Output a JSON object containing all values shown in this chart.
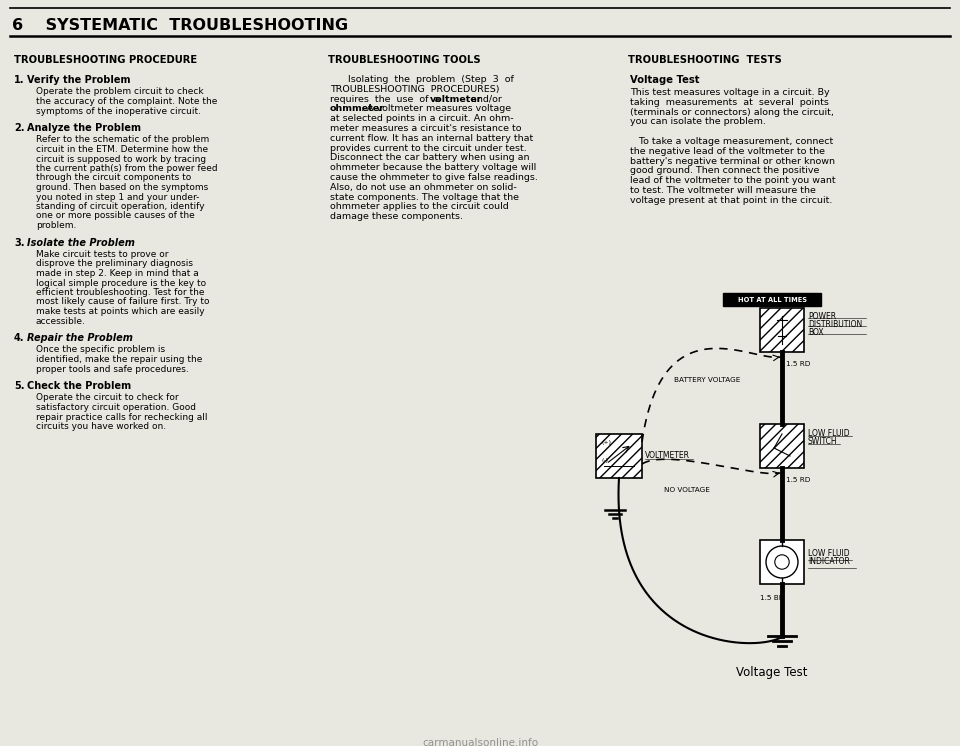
{
  "title": "6    SYSTEMATIC  TROUBLESHOOTING",
  "bg_color": "#e8e8e0",
  "col1_header": "TROUBLESHOOTING PROCEDURE",
  "col2_header": "TROUBLESHOOTING TOOLS",
  "col3_header": "TROUBLESHOOTING  TESTS",
  "col1_items": [
    {
      "num": "1.",
      "bold": "Verify the Problem",
      "italic": false,
      "text": "Operate the problem circuit to check\nthe accuracy of the complaint. Note the\nsymptoms of the inoperative circuit."
    },
    {
      "num": "2.",
      "bold": "Analyze the Problem",
      "italic": false,
      "text": "Refer to the schematic of the problem\ncircuit in the ETM. Determine how the\ncircuit is supposed to work by tracing\nthe current path(s) from the power feed\nthrough the circuit components to\nground. Then based on the symptoms\nyou noted in step 1 and your under-\nstanding of circuit operation, identify\none or more possible causes of the\nproblem."
    },
    {
      "num": "3.",
      "bold": "Isolate the Problem",
      "italic": true,
      "text": "Make circuit tests to prove or\ndisprove the preliminary diagnosis\nmade in step 2. Keep in mind that a\nlogical simple procedure is the key to\nefficient troubleshooting. Test for the\nmost likely cause of failure first. Try to\nmake tests at points which are easily\naccessible."
    },
    {
      "num": "4.",
      "bold": "Repair the Problem",
      "italic": true,
      "text": "Once the specific problem is\nidentified, make the repair using the\nproper tools and safe procedures."
    },
    {
      "num": "5.",
      "bold": "Check the Problem",
      "italic": false,
      "text": "Operate the circuit to check for\nsatisfactory circuit operation. Good\nrepair practice calls for rechecking all\ncircuits you have worked on."
    }
  ],
  "col2_lines": [
    {
      "text": "Isolating  the  problem  (Step  3  of",
      "bold": false,
      "indent": true
    },
    {
      "text": "TROUBLESHOOTING  PROCEDURES)",
      "bold": false,
      "indent": false
    },
    {
      "text": "requires  the  use  of  a ",
      "bold": false,
      "inline_bold": "voltmeter",
      "after": "  and/or",
      "indent": false
    },
    {
      "text": "ohmmeter",
      "bold": true,
      "after": ". A voltmeter measures voltage",
      "indent": false
    },
    {
      "text": "at selected points in a circuit. An ohm-",
      "bold": false,
      "indent": false
    },
    {
      "text": "meter measures a circuit's resistance to",
      "bold": false,
      "indent": false
    },
    {
      "text": "current flow. It has an internal battery that",
      "bold": false,
      "indent": false
    },
    {
      "text": "provides current to the circuit under test.",
      "bold": false,
      "indent": false
    },
    {
      "text": "Disconnect the car battery when using an",
      "bold": false,
      "indent": false
    },
    {
      "text": "ohmmeter because the battery voltage will",
      "bold": false,
      "indent": false
    },
    {
      "text": "cause the ohmmeter to give false readings.",
      "bold": false,
      "indent": false
    },
    {
      "text": "Also, do not use an ohmmeter on solid-",
      "bold": false,
      "indent": false
    },
    {
      "text": "state components. The voltage that the",
      "bold": false,
      "indent": false
    },
    {
      "text": "ohmmeter applies to the circuit could",
      "bold": false,
      "indent": false
    },
    {
      "text": "damage these components.",
      "bold": false,
      "indent": false
    }
  ],
  "col3_subheader": "Voltage Test",
  "col3_lines": [
    "This test measures voltage in a circuit. By",
    "taking  measurements  at  several  points",
    "(terminals or connectors) along the circuit,",
    "you can isolate the problem.",
    "",
    "   To take a voltage measurement, connect",
    "the negative lead of the voltmeter to the",
    "battery's negative terminal or other known",
    "good ground. Then connect the positive",
    "lead of the voltmeter to the point you want",
    "to test. The voltmeter will measure the",
    "voltage present at that point in the circuit."
  ],
  "diagram_caption": "Voltage Test",
  "watermark": "carmanualsonline.info"
}
